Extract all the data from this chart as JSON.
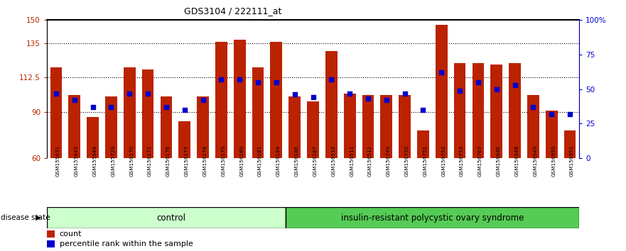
{
  "title": "GDS3104 / 222111_at",
  "samples": [
    "GSM155631",
    "GSM155643",
    "GSM155644",
    "GSM155729",
    "GSM156170",
    "GSM156171",
    "GSM156176",
    "GSM156177",
    "GSM156178",
    "GSM156179",
    "GSM156180",
    "GSM156181",
    "GSM156184",
    "GSM156186",
    "GSM156187",
    "GSM156510",
    "GSM156511",
    "GSM156512",
    "GSM156749",
    "GSM156750",
    "GSM156751",
    "GSM156752",
    "GSM156753",
    "GSM156763",
    "GSM156946",
    "GSM156948",
    "GSM156949",
    "GSM156950",
    "GSM156951"
  ],
  "bar_values": [
    119,
    101,
    87,
    100,
    119,
    118,
    100,
    84,
    100,
    136,
    137,
    119,
    136,
    100,
    97,
    130,
    102,
    101,
    101,
    101,
    78,
    147,
    122,
    122,
    121,
    122,
    101,
    91,
    78
  ],
  "dot_values": [
    47,
    42,
    37,
    37,
    47,
    47,
    37,
    35,
    42,
    57,
    57,
    55,
    55,
    46,
    44,
    57,
    47,
    43,
    42,
    47,
    35,
    62,
    49,
    55,
    50,
    53,
    37,
    32,
    32
  ],
  "group1_count": 13,
  "group2_count": 16,
  "group1_label": "control",
  "group2_label": "insulin-resistant polycystic ovary syndrome",
  "disease_state_label": "disease state",
  "ymin": 60,
  "ymax": 150,
  "yticks": [
    60,
    90,
    112.5,
    135,
    150
  ],
  "ytick_labels": [
    "60",
    "90",
    "112.5",
    "135",
    "150"
  ],
  "y2ticks": [
    0,
    25,
    50,
    75,
    100
  ],
  "y2tick_labels": [
    "0",
    "25",
    "50",
    "75",
    "100%"
  ],
  "bar_color": "#BB2200",
  "dot_color": "#0000CC",
  "group1_bg": "#CCFFCC",
  "group2_bg": "#55CC55",
  "label_row_bg": "#CCCCCC",
  "legend_count": "count",
  "legend_pct": "percentile rank within the sample"
}
